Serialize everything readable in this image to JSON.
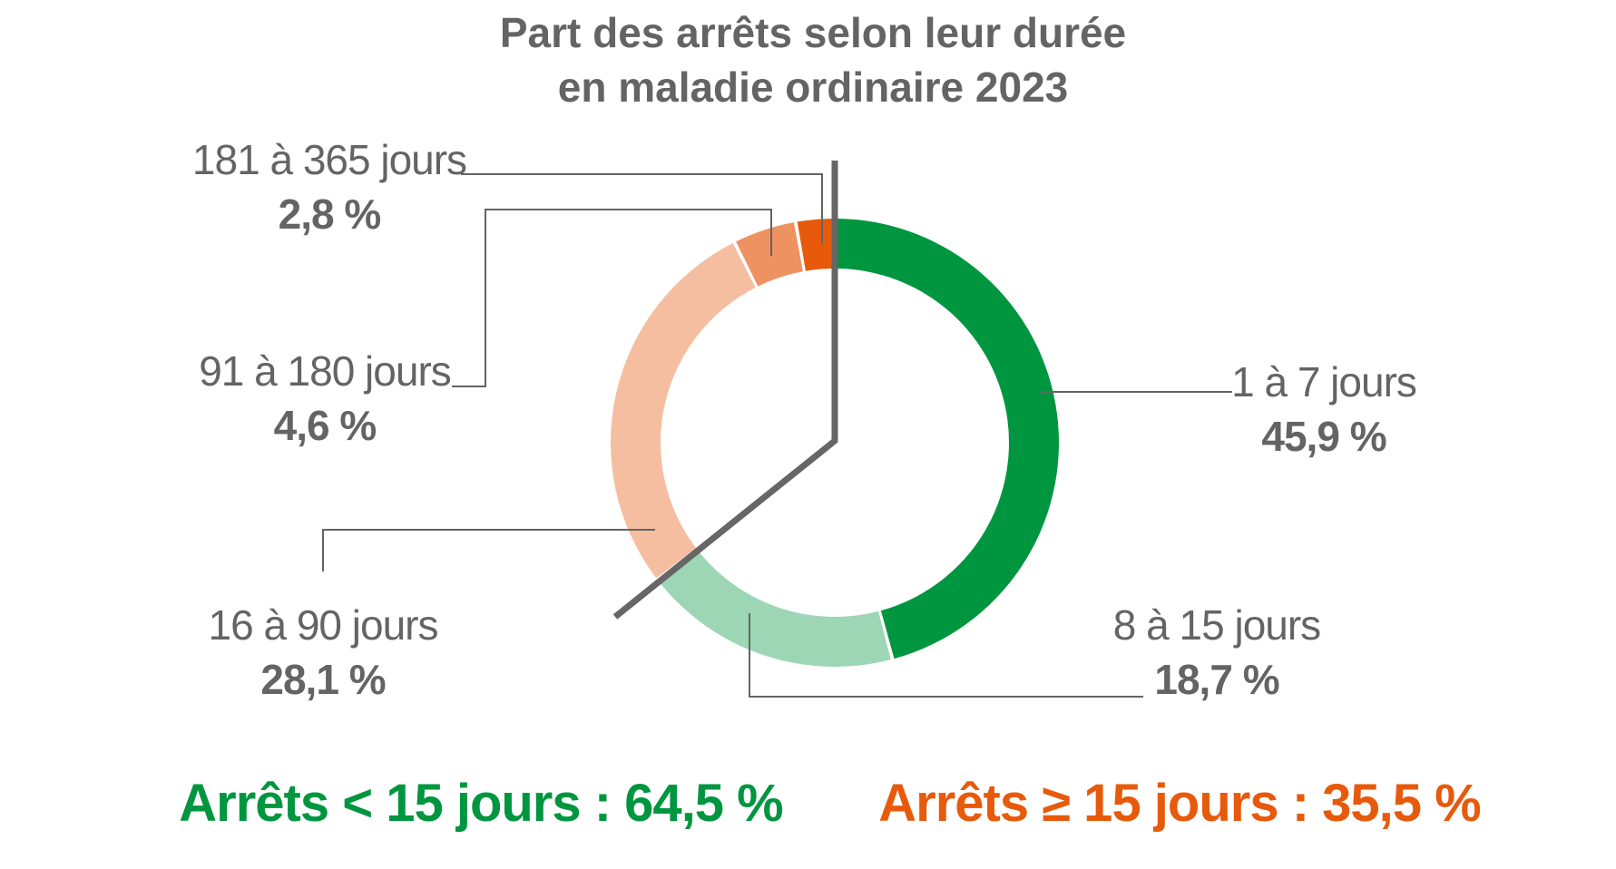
{
  "chart_data": {
    "type": "pie",
    "variant": "donut",
    "title_lines": [
      "Part des arrêts selon leur durée",
      "en maladie ordinaire 2023"
    ],
    "segments": [
      {
        "label": "1 à 7 jours",
        "value": 45.9,
        "value_label": "45,9 %",
        "color": "#009640"
      },
      {
        "label": "8 à 15 jours",
        "value": 18.7,
        "value_label": "18,7 %",
        "color": "#9dd6b4"
      },
      {
        "label": "16 à 90 jours",
        "value": 28.1,
        "value_label": "28,1 %",
        "color": "#f6bea0"
      },
      {
        "label": "91 à 180 jours",
        "value": 4.6,
        "value_label": "4,6 %",
        "color": "#ef9262"
      },
      {
        "label": "181 à 365 jours",
        "value": 2.8,
        "value_label": "2,8 %",
        "color": "#e75a0c"
      }
    ],
    "summary": [
      {
        "text": "Arrêts < 15 jours : 64,5 %",
        "color": "#009640"
      },
      {
        "text": "Arrêts ≥ 15 jours : 35,5 %",
        "color": "#e75a0c"
      }
    ]
  }
}
